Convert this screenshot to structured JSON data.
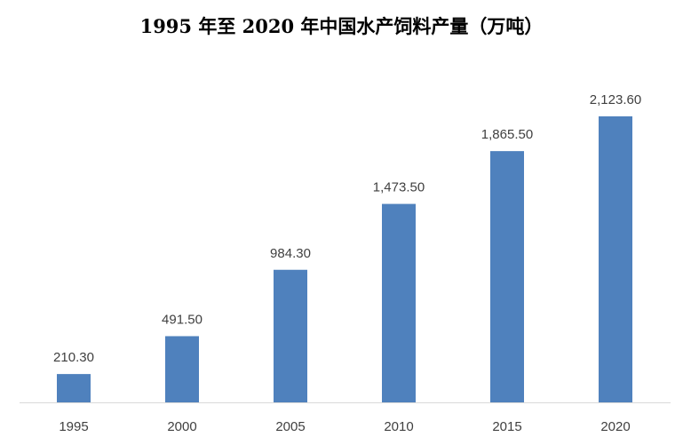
{
  "chart_data": {
    "type": "bar",
    "title": "1995 年至 2020 年中国水产饲料产量（万吨）",
    "categories": [
      "1995",
      "2000",
      "2005",
      "2010",
      "2015",
      "2020"
    ],
    "values": [
      210.3,
      491.5,
      984.3,
      1473.5,
      1865.5,
      2123.6
    ],
    "value_labels": [
      "210.30",
      "491.50",
      "984.30",
      "1,473.50",
      "1,865.50",
      "2,123.60"
    ],
    "xlabel": "",
    "ylabel": "",
    "ylim": [
      0,
      2123.6
    ],
    "grid": false,
    "legend": "none",
    "bar_color": "#4f81bd"
  }
}
